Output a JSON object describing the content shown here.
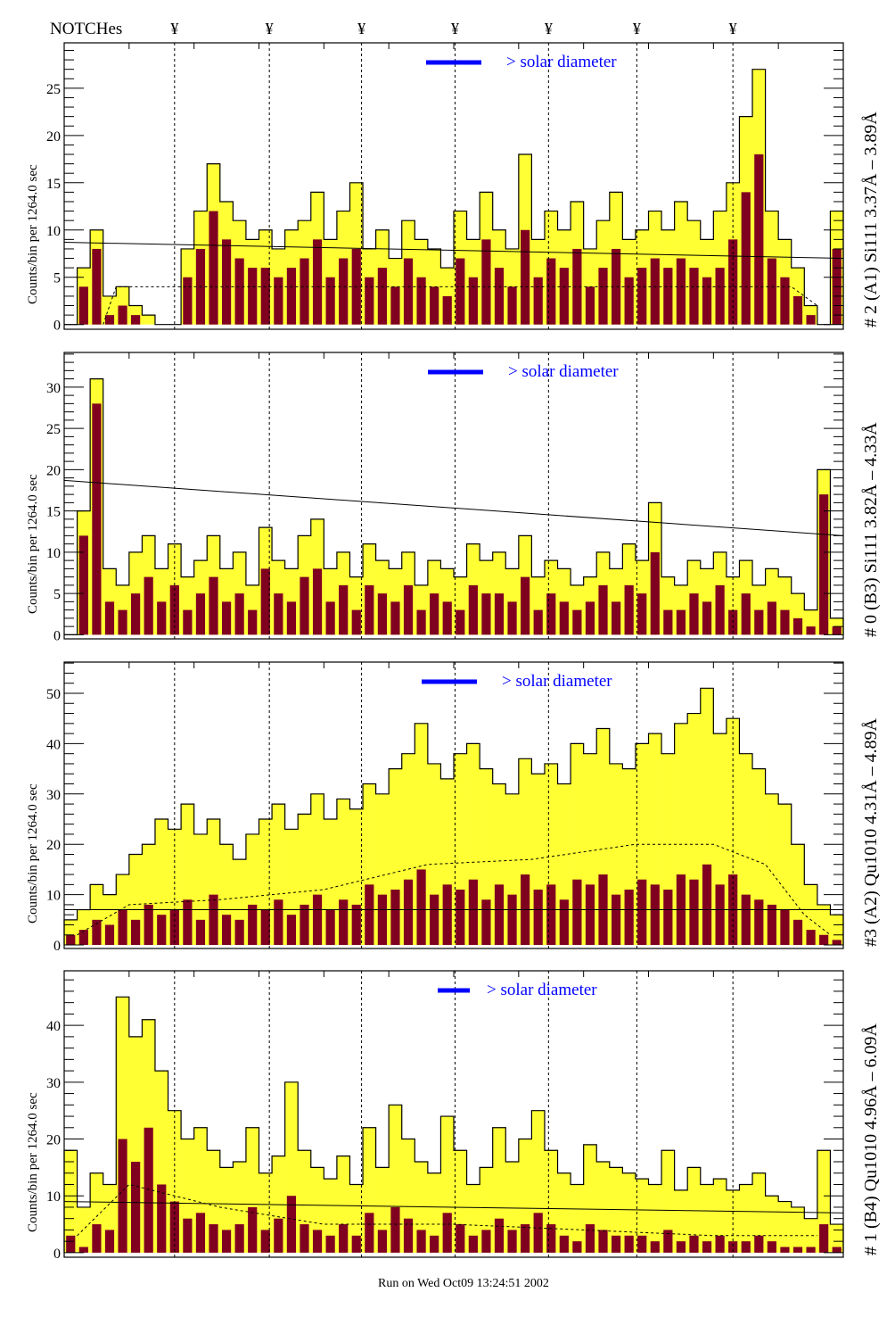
{
  "header": {
    "notches_label": "NOTCHes",
    "notch_symbol": "¥"
  },
  "footer": {
    "run_text": "Run on Wed Oct09 13:24:51 2002"
  },
  "colors": {
    "total": "#ffff33",
    "subset": "#800020",
    "legend": "#0000ff"
  },
  "chart_data": [
    {
      "type": "bar",
      "title": "# 2 (A1) Si111  3.37Å – 3.89Å",
      "ylabel": "Counts/bin per   1264.0 sec",
      "legend": "> solar diameter",
      "ylim": [
        -0.5,
        29.8
      ],
      "yticks": [
        0,
        5,
        10,
        15,
        20,
        25
      ],
      "notches": [
        8.5,
        15.8,
        22.9,
        30.1,
        37.3,
        44.1,
        51.5
      ],
      "trend": [
        8.7,
        7.0
      ],
      "dashed": [
        [
          3,
          0
        ],
        [
          4,
          4
        ],
        [
          10,
          4
        ],
        [
          20,
          4
        ],
        [
          40,
          4
        ],
        [
          56,
          4
        ],
        [
          58,
          2
        ]
      ],
      "series": [
        {
          "name": "total",
          "values": [
            0,
            6,
            10,
            3,
            4,
            2,
            1,
            0,
            0,
            8,
            12,
            17,
            13,
            11,
            9,
            10,
            8,
            10,
            11,
            14,
            9,
            12,
            15,
            8,
            10,
            7,
            11,
            9,
            8,
            6,
            12,
            9,
            14,
            10,
            8,
            18,
            9,
            12,
            10,
            13,
            8,
            11,
            14,
            9,
            10,
            12,
            10,
            13,
            11,
            9,
            12,
            15,
            22,
            27,
            12,
            9,
            6,
            2,
            0,
            12
          ]
        },
        {
          "name": "subset",
          "values": [
            0,
            4,
            8,
            1,
            2,
            1,
            0,
            0,
            0,
            5,
            8,
            12,
            9,
            7,
            6,
            6,
            5,
            6,
            7,
            9,
            5,
            7,
            8,
            5,
            6,
            4,
            7,
            5,
            4,
            3,
            7,
            5,
            9,
            6,
            4,
            10,
            5,
            7,
            6,
            8,
            4,
            6,
            8,
            5,
            6,
            7,
            6,
            7,
            6,
            5,
            6,
            9,
            14,
            18,
            7,
            5,
            3,
            1,
            0,
            8
          ]
        }
      ]
    },
    {
      "type": "bar",
      "title": "# 0 (B3) Si111  3.82Å – 4.33Å",
      "ylabel": "Counts/bin per   1264.0 sec",
      "legend": "> solar diameter",
      "ylim": [
        -0.5,
        34.2
      ],
      "yticks": [
        0,
        5,
        10,
        15,
        20,
        25,
        30
      ],
      "notches": [
        8.5,
        15.8,
        22.9,
        30.1,
        37.3,
        44.1,
        51.5
      ],
      "trend": [
        18.7,
        12.0
      ],
      "dashed": [],
      "series": [
        {
          "name": "total",
          "values": [
            0,
            15,
            31,
            8,
            6,
            10,
            12,
            8,
            11,
            7,
            9,
            12,
            8,
            10,
            6,
            13,
            9,
            8,
            12,
            14,
            8,
            10,
            7,
            11,
            9,
            8,
            10,
            6,
            9,
            8,
            7,
            11,
            9,
            10,
            8,
            12,
            7,
            9,
            8,
            6,
            7,
            10,
            8,
            11,
            9,
            16,
            7,
            6,
            9,
            8,
            10,
            7,
            9,
            6,
            8,
            7,
            5,
            3,
            20,
            2
          ]
        },
        {
          "name": "subset",
          "values": [
            0,
            12,
            28,
            4,
            3,
            5,
            7,
            4,
            6,
            3,
            5,
            7,
            4,
            5,
            3,
            8,
            5,
            4,
            7,
            8,
            4,
            6,
            3,
            6,
            5,
            4,
            6,
            3,
            5,
            4,
            3,
            6,
            5,
            5,
            4,
            7,
            3,
            5,
            4,
            3,
            4,
            6,
            4,
            6,
            5,
            10,
            3,
            3,
            5,
            4,
            6,
            3,
            5,
            3,
            4,
            3,
            2,
            1,
            17,
            1
          ]
        }
      ]
    },
    {
      "type": "bar",
      "title": "#3 (A2) Qu1010  4.31Å – 4.89Å",
      "ylabel": "Counts/bin per   1264.0 sec",
      "legend": "> solar diameter",
      "ylim": [
        -0.7,
        56.2
      ],
      "yticks": [
        0,
        10,
        20,
        30,
        40,
        50
      ],
      "notches": [
        8.5,
        15.8,
        22.9,
        30.1,
        37.3,
        44.1,
        51.5
      ],
      "trend": [
        7.0,
        7.0
      ],
      "dashed": [
        [
          1,
          2
        ],
        [
          5,
          8
        ],
        [
          12,
          9
        ],
        [
          20,
          11
        ],
        [
          28,
          16
        ],
        [
          36,
          17
        ],
        [
          44,
          20
        ],
        [
          50,
          20
        ],
        [
          54,
          16
        ],
        [
          57,
          6
        ],
        [
          59,
          2
        ]
      ],
      "series": [
        {
          "name": "total",
          "values": [
            5,
            7,
            12,
            10,
            14,
            18,
            20,
            25,
            23,
            28,
            22,
            25,
            20,
            17,
            22,
            25,
            28,
            23,
            26,
            30,
            25,
            29,
            27,
            32,
            30,
            35,
            38,
            44,
            36,
            33,
            38,
            40,
            35,
            32,
            30,
            37,
            34,
            36,
            32,
            40,
            38,
            43,
            36,
            35,
            40,
            42,
            38,
            44,
            46,
            51,
            42,
            45,
            38,
            35,
            30,
            28,
            20,
            12,
            8,
            6
          ]
        },
        {
          "name": "subset",
          "values": [
            2,
            3,
            5,
            4,
            7,
            5,
            8,
            6,
            7,
            9,
            5,
            10,
            6,
            5,
            8,
            7,
            9,
            6,
            8,
            10,
            7,
            9,
            8,
            12,
            10,
            11,
            13,
            15,
            10,
            12,
            11,
            13,
            9,
            12,
            10,
            14,
            11,
            12,
            9,
            13,
            12,
            14,
            10,
            11,
            13,
            12,
            11,
            14,
            13,
            16,
            12,
            14,
            10,
            9,
            8,
            7,
            5,
            3,
            2,
            1
          ]
        }
      ]
    },
    {
      "type": "bar",
      "title": "# 1 (B4) Qu1010 4.96Å – 6.09Å",
      "ylabel": "Counts/bin per   1264.0 sec",
      "legend": "> solar diameter",
      "ylim": [
        -0.8,
        49.6
      ],
      "yticks": [
        0,
        10,
        20,
        30,
        40
      ],
      "notches": [
        8.5,
        15.8,
        22.9,
        30.1,
        37.3,
        44.1,
        51.5
      ],
      "trend": [
        9.0,
        7.0
      ],
      "dashed": [
        [
          1,
          3
        ],
        [
          5,
          12
        ],
        [
          12,
          8
        ],
        [
          20,
          5
        ],
        [
          30,
          5
        ],
        [
          40,
          4
        ],
        [
          50,
          3
        ],
        [
          58,
          3
        ]
      ],
      "series": [
        {
          "name": "total",
          "values": [
            18,
            8,
            14,
            12,
            45,
            38,
            41,
            32,
            25,
            20,
            22,
            18,
            15,
            16,
            22,
            14,
            17,
            30,
            18,
            15,
            13,
            17,
            12,
            22,
            15,
            26,
            20,
            16,
            14,
            24,
            18,
            12,
            15,
            22,
            16,
            20,
            25,
            18,
            14,
            12,
            19,
            16,
            15,
            14,
            13,
            12,
            18,
            11,
            15,
            12,
            13,
            11,
            12,
            14,
            10,
            9,
            8,
            6,
            18,
            5
          ]
        },
        {
          "name": "subset",
          "values": [
            3,
            1,
            5,
            4,
            20,
            16,
            22,
            12,
            9,
            6,
            7,
            5,
            4,
            5,
            8,
            4,
            6,
            10,
            5,
            4,
            3,
            5,
            3,
            7,
            4,
            8,
            6,
            4,
            3,
            7,
            5,
            3,
            4,
            6,
            4,
            5,
            7,
            5,
            3,
            2,
            5,
            4,
            3,
            3,
            3,
            2,
            4,
            2,
            3,
            2,
            3,
            2,
            2,
            3,
            2,
            1,
            1,
            1,
            5,
            1
          ]
        }
      ]
    }
  ]
}
